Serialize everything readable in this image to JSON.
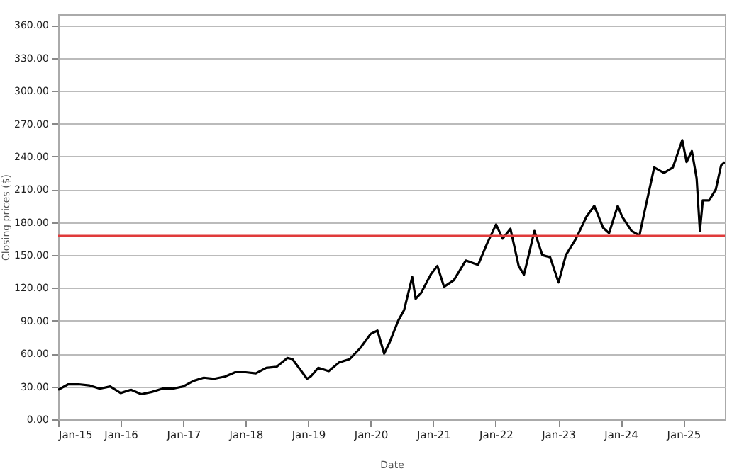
{
  "chart_data": {
    "type": "line",
    "xlabel": "Date",
    "ylabel": "Closing prices ($)",
    "grid": "y",
    "line_style": "solid",
    "marker": "none",
    "xlim": [
      "2015-01-01",
      "2025-09-01"
    ],
    "xticks": [
      {
        "value": "2015-01-01",
        "label": "Jan-15"
      },
      {
        "value": "2016-01-01",
        "label": "Jan-16"
      },
      {
        "value": "2017-01-01",
        "label": "Jan-17"
      },
      {
        "value": "2018-01-01",
        "label": "Jan-18"
      },
      {
        "value": "2019-01-01",
        "label": "Jan-19"
      },
      {
        "value": "2020-01-01",
        "label": "Jan-20"
      },
      {
        "value": "2021-01-01",
        "label": "Jan-21"
      },
      {
        "value": "2022-01-01",
        "label": "Jan-22"
      },
      {
        "value": "2023-01-01",
        "label": "Jan-23"
      },
      {
        "value": "2024-01-01",
        "label": "Jan-24"
      },
      {
        "value": "2025-01-01",
        "label": "Jan-25"
      }
    ],
    "ylim": [
      0,
      370
    ],
    "yticks": [
      {
        "value": 0,
        "label": "0.00"
      },
      {
        "value": 30,
        "label": "30.00"
      },
      {
        "value": 60,
        "label": "60.00"
      },
      {
        "value": 90,
        "label": "90.00"
      },
      {
        "value": 120,
        "label": "120.00"
      },
      {
        "value": 150,
        "label": "150.00"
      },
      {
        "value": 180,
        "label": "180.00"
      },
      {
        "value": 210,
        "label": "210.00"
      },
      {
        "value": 240,
        "label": "240.00"
      },
      {
        "value": 270,
        "label": "270.00"
      },
      {
        "value": 300,
        "label": "300.00"
      },
      {
        "value": 330,
        "label": "330.00"
      },
      {
        "value": 360,
        "label": "360.00"
      }
    ],
    "ref_lines": [
      {
        "axis": "y",
        "value": 167.5,
        "color": "#e03a3a"
      }
    ],
    "x": [
      "2015-01-01",
      "2015-03-01",
      "2015-05-01",
      "2015-07-01",
      "2015-09-01",
      "2015-11-01",
      "2016-01-01",
      "2016-03-01",
      "2016-05-01",
      "2016-07-01",
      "2016-09-01",
      "2016-11-01",
      "2017-01-01",
      "2017-03-01",
      "2017-05-01",
      "2017-07-01",
      "2017-09-01",
      "2017-11-01",
      "2018-01-01",
      "2018-03-01",
      "2018-05-01",
      "2018-07-01",
      "2018-09-01",
      "2018-10-01",
      "2018-12-25",
      "2019-01-15",
      "2019-03-01",
      "2019-05-01",
      "2019-07-01",
      "2019-09-01",
      "2019-11-01",
      "2020-01-01",
      "2020-02-10",
      "2020-03-20",
      "2020-04-20",
      "2020-06-10",
      "2020-07-15",
      "2020-08-31",
      "2020-09-20",
      "2020-10-20",
      "2020-12-20",
      "2021-01-25",
      "2021-03-05",
      "2021-05-01",
      "2021-07-10",
      "2021-09-20",
      "2021-11-10",
      "2022-01-03",
      "2022-02-10",
      "2022-03-28",
      "2022-05-15",
      "2022-06-15",
      "2022-08-15",
      "2022-09-30",
      "2022-11-15",
      "2023-01-03",
      "2023-02-15",
      "2023-04-15",
      "2023-06-15",
      "2023-07-31",
      "2023-09-20",
      "2023-10-25",
      "2023-12-15",
      "2024-01-10",
      "2024-03-05",
      "2024-04-20",
      "2024-05-20",
      "2024-07-15",
      "2024-09-10",
      "2024-11-01",
      "2024-12-26",
      "2025-01-20",
      "2025-02-20",
      "2025-03-20",
      "2025-04-08",
      "2025-04-25",
      "2025-06-01",
      "2025-07-10",
      "2025-08-10",
      "2025-09-01"
    ],
    "series": [
      {
        "color": "#000000",
        "values": [
          27,
          32,
          32,
          31,
          28,
          30,
          24,
          27,
          23,
          25,
          28,
          28,
          30,
          35,
          38,
          37,
          39,
          43,
          43,
          42,
          47,
          48,
          56,
          55,
          37,
          39,
          47,
          44,
          52,
          55,
          65,
          78,
          81,
          60,
          70,
          90,
          100,
          130,
          110,
          115,
          133,
          140,
          121,
          127,
          145,
          141,
          160,
          178,
          165,
          174,
          140,
          132,
          172,
          150,
          148,
          125,
          150,
          165,
          185,
          195,
          175,
          170,
          195,
          185,
          172,
          168,
          190,
          230,
          225,
          230,
          255,
          235,
          245,
          220,
          172,
          200,
          200,
          210,
          232,
          235
        ]
      }
    ]
  }
}
